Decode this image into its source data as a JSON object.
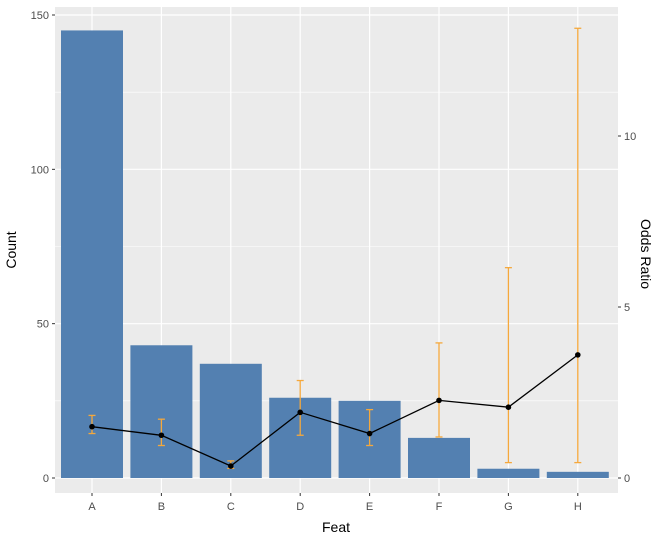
{
  "chart_data": {
    "type": "bar",
    "xlabel": "Feat",
    "ylabel": "Count",
    "y2label": "Odds Ratio",
    "categories": [
      "A",
      "B",
      "C",
      "D",
      "E",
      "F",
      "G",
      "H"
    ],
    "ylim": [
      0,
      150
    ],
    "yticks": [
      0,
      50,
      100,
      150
    ],
    "y2lim": [
      0,
      13.3
    ],
    "y2ticks": [
      0,
      5,
      10
    ],
    "grid": true,
    "series": [
      {
        "kind": "bar",
        "axis": "left",
        "values": [
          145,
          43,
          37,
          26,
          25,
          13,
          3,
          2
        ]
      },
      {
        "kind": "line-with-errorbars",
        "axis": "right",
        "values": [
          1.5,
          1.25,
          0.35,
          1.92,
          1.3,
          2.27,
          2.07,
          3.6
        ],
        "lower": [
          1.3,
          0.95,
          0.28,
          1.25,
          0.95,
          1.2,
          0.45,
          0.45
        ],
        "upper": [
          1.83,
          1.72,
          0.5,
          2.85,
          2.0,
          3.95,
          6.15,
          13.15
        ]
      }
    ]
  },
  "colors": {
    "panel": "#ebebeb",
    "grid": "#ffffff",
    "bar": "#5380b1",
    "errorbar": "#f5a83c",
    "line": "#000000"
  }
}
